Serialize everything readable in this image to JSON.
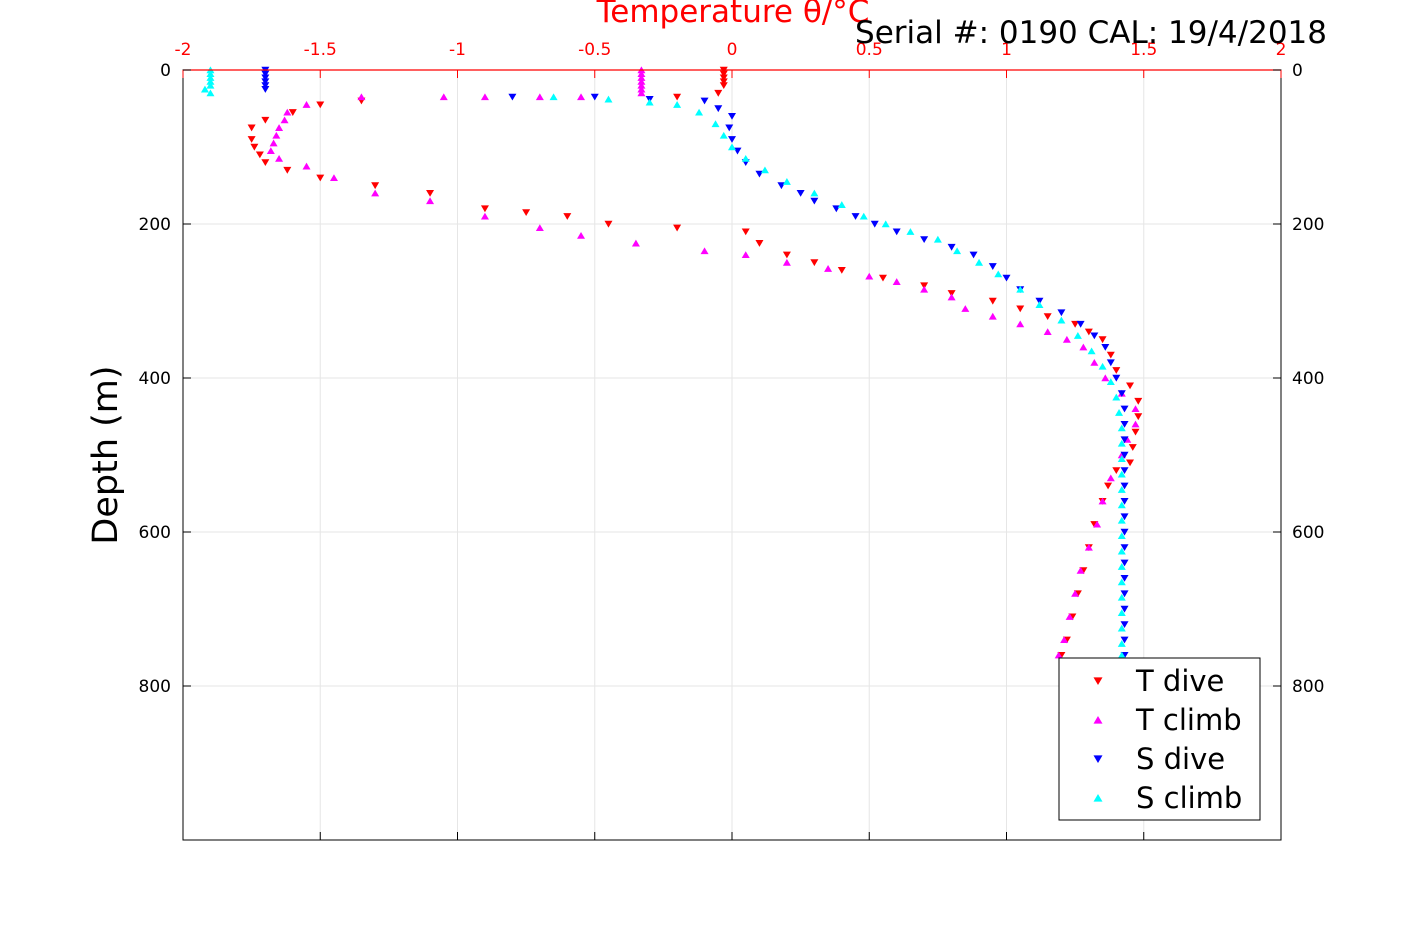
{
  "header": {
    "serial_label": "Serial #: 0190  CAL: 19/4/2018"
  },
  "colors": {
    "axis_top": "#ff0000",
    "grid": "#e6e6e6",
    "T_dive": "#ff0000",
    "T_climb": "#ff00ff",
    "S_dive": "#0000ff",
    "S_climb": "#00ffff"
  },
  "chart_data": {
    "type": "scatter",
    "title": "Temperature θ/°C",
    "xlabel": "Temperature θ/°C",
    "ylabel": "Depth (m)",
    "xlim": [
      -2,
      2
    ],
    "ylim": [
      0,
      1000
    ],
    "y_reversed": true,
    "grid": true,
    "legend_position": "bottom-right",
    "x_ticks": [
      -2,
      -1.5,
      -1,
      -0.5,
      0,
      0.5,
      1,
      1.5,
      2
    ],
    "x_tick_labels": [
      "-2",
      "-1.5",
      "-1",
      "-0.5",
      "0",
      "0.5",
      "1",
      "1.5",
      "2"
    ],
    "y_ticks": [
      0,
      200,
      400,
      600,
      800
    ],
    "y_tick_labels": [
      "0",
      "200",
      "400",
      "600",
      "800"
    ],
    "series": [
      {
        "name": "T dive",
        "marker": "triangle-down",
        "color": "#ff0000",
        "points": [
          [
            -0.03,
            0
          ],
          [
            -0.03,
            5
          ],
          [
            -0.03,
            10
          ],
          [
            -0.03,
            15
          ],
          [
            -0.03,
            20
          ],
          [
            -0.05,
            30
          ],
          [
            -0.2,
            35
          ],
          [
            -1.35,
            40
          ],
          [
            -1.5,
            45
          ],
          [
            -1.6,
            55
          ],
          [
            -1.7,
            65
          ],
          [
            -1.75,
            75
          ],
          [
            -1.75,
            90
          ],
          [
            -1.74,
            100
          ],
          [
            -1.72,
            110
          ],
          [
            -1.7,
            120
          ],
          [
            -1.62,
            130
          ],
          [
            -1.5,
            140
          ],
          [
            -1.3,
            150
          ],
          [
            -1.1,
            160
          ],
          [
            -0.9,
            180
          ],
          [
            -0.75,
            185
          ],
          [
            -0.6,
            190
          ],
          [
            -0.45,
            200
          ],
          [
            -0.2,
            205
          ],
          [
            0.05,
            210
          ],
          [
            0.1,
            225
          ],
          [
            0.2,
            240
          ],
          [
            0.3,
            250
          ],
          [
            0.4,
            260
          ],
          [
            0.55,
            270
          ],
          [
            0.7,
            280
          ],
          [
            0.8,
            290
          ],
          [
            0.95,
            300
          ],
          [
            1.05,
            310
          ],
          [
            1.15,
            320
          ],
          [
            1.25,
            330
          ],
          [
            1.3,
            340
          ],
          [
            1.35,
            350
          ],
          [
            1.38,
            370
          ],
          [
            1.4,
            390
          ],
          [
            1.45,
            410
          ],
          [
            1.48,
            430
          ],
          [
            1.48,
            450
          ],
          [
            1.47,
            470
          ],
          [
            1.46,
            490
          ],
          [
            1.45,
            510
          ],
          [
            1.4,
            520
          ],
          [
            1.37,
            540
          ],
          [
            1.35,
            560
          ],
          [
            1.32,
            590
          ],
          [
            1.3,
            620
          ],
          [
            1.28,
            650
          ],
          [
            1.26,
            680
          ],
          [
            1.24,
            710
          ],
          [
            1.22,
            740
          ],
          [
            1.2,
            760
          ]
        ]
      },
      {
        "name": "T climb",
        "marker": "triangle-up",
        "color": "#ff00ff",
        "points": [
          [
            -0.33,
            0
          ],
          [
            -0.33,
            5
          ],
          [
            -0.33,
            10
          ],
          [
            -0.33,
            15
          ],
          [
            -0.33,
            20
          ],
          [
            -0.33,
            25
          ],
          [
            -0.33,
            30
          ],
          [
            -1.35,
            35
          ],
          [
            -1.05,
            35
          ],
          [
            -0.9,
            35
          ],
          [
            -0.7,
            35
          ],
          [
            -0.55,
            35
          ],
          [
            -1.55,
            45
          ],
          [
            -1.62,
            55
          ],
          [
            -1.63,
            65
          ],
          [
            -1.65,
            75
          ],
          [
            -1.66,
            85
          ],
          [
            -1.67,
            95
          ],
          [
            -1.68,
            105
          ],
          [
            -1.65,
            115
          ],
          [
            -1.55,
            125
          ],
          [
            -1.45,
            140
          ],
          [
            -1.3,
            160
          ],
          [
            -1.1,
            170
          ],
          [
            -0.9,
            190
          ],
          [
            -0.7,
            205
          ],
          [
            -0.55,
            215
          ],
          [
            -0.35,
            225
          ],
          [
            -0.1,
            235
          ],
          [
            0.05,
            240
          ],
          [
            0.2,
            250
          ],
          [
            0.35,
            258
          ],
          [
            0.5,
            268
          ],
          [
            0.6,
            275
          ],
          [
            0.7,
            285
          ],
          [
            0.8,
            295
          ],
          [
            0.85,
            310
          ],
          [
            0.95,
            320
          ],
          [
            1.05,
            330
          ],
          [
            1.15,
            340
          ],
          [
            1.22,
            350
          ],
          [
            1.28,
            360
          ],
          [
            1.32,
            380
          ],
          [
            1.36,
            400
          ],
          [
            1.42,
            420
          ],
          [
            1.47,
            440
          ],
          [
            1.47,
            460
          ],
          [
            1.44,
            480
          ],
          [
            1.42,
            500
          ],
          [
            1.38,
            530
          ],
          [
            1.35,
            560
          ],
          [
            1.33,
            590
          ],
          [
            1.3,
            620
          ],
          [
            1.27,
            650
          ],
          [
            1.25,
            680
          ],
          [
            1.23,
            710
          ],
          [
            1.21,
            740
          ],
          [
            1.19,
            760
          ]
        ]
      },
      {
        "name": "S dive",
        "marker": "triangle-down",
        "color": "#0000ff",
        "points": [
          [
            -1.7,
            0
          ],
          [
            -1.7,
            5
          ],
          [
            -1.7,
            10
          ],
          [
            -1.7,
            15
          ],
          [
            -1.7,
            20
          ],
          [
            -1.7,
            25
          ],
          [
            -0.8,
            35
          ],
          [
            -0.5,
            35
          ],
          [
            -0.3,
            38
          ],
          [
            -0.1,
            40
          ],
          [
            -0.05,
            50
          ],
          [
            0.0,
            60
          ],
          [
            -0.01,
            75
          ],
          [
            0.0,
            90
          ],
          [
            0.02,
            105
          ],
          [
            0.05,
            120
          ],
          [
            0.1,
            135
          ],
          [
            0.18,
            150
          ],
          [
            0.25,
            160
          ],
          [
            0.3,
            170
          ],
          [
            0.38,
            180
          ],
          [
            0.45,
            190
          ],
          [
            0.52,
            200
          ],
          [
            0.6,
            210
          ],
          [
            0.7,
            220
          ],
          [
            0.8,
            230
          ],
          [
            0.88,
            240
          ],
          [
            0.95,
            255
          ],
          [
            1.0,
            270
          ],
          [
            1.05,
            285
          ],
          [
            1.12,
            300
          ],
          [
            1.2,
            315
          ],
          [
            1.27,
            330
          ],
          [
            1.32,
            345
          ],
          [
            1.36,
            360
          ],
          [
            1.38,
            380
          ],
          [
            1.4,
            400
          ],
          [
            1.42,
            420
          ],
          [
            1.43,
            440
          ],
          [
            1.43,
            460
          ],
          [
            1.43,
            480
          ],
          [
            1.43,
            500
          ],
          [
            1.43,
            520
          ],
          [
            1.43,
            540
          ],
          [
            1.43,
            560
          ],
          [
            1.43,
            580
          ],
          [
            1.43,
            600
          ],
          [
            1.43,
            620
          ],
          [
            1.43,
            640
          ],
          [
            1.43,
            660
          ],
          [
            1.43,
            680
          ],
          [
            1.43,
            700
          ],
          [
            1.43,
            720
          ],
          [
            1.43,
            740
          ],
          [
            1.43,
            760
          ]
        ]
      },
      {
        "name": "S climb",
        "marker": "triangle-up",
        "color": "#00ffff",
        "points": [
          [
            -1.9,
            0
          ],
          [
            -1.9,
            5
          ],
          [
            -1.9,
            10
          ],
          [
            -1.9,
            15
          ],
          [
            -1.9,
            20
          ],
          [
            -1.92,
            25
          ],
          [
            -1.9,
            30
          ],
          [
            -0.65,
            35
          ],
          [
            -0.45,
            38
          ],
          [
            -0.3,
            42
          ],
          [
            -0.2,
            45
          ],
          [
            -0.12,
            55
          ],
          [
            -0.06,
            70
          ],
          [
            -0.03,
            85
          ],
          [
            0.0,
            100
          ],
          [
            0.05,
            115
          ],
          [
            0.12,
            130
          ],
          [
            0.2,
            145
          ],
          [
            0.3,
            160
          ],
          [
            0.4,
            175
          ],
          [
            0.48,
            190
          ],
          [
            0.56,
            200
          ],
          [
            0.65,
            210
          ],
          [
            0.75,
            220
          ],
          [
            0.82,
            235
          ],
          [
            0.9,
            250
          ],
          [
            0.97,
            265
          ],
          [
            1.05,
            285
          ],
          [
            1.12,
            305
          ],
          [
            1.2,
            325
          ],
          [
            1.26,
            345
          ],
          [
            1.31,
            365
          ],
          [
            1.35,
            385
          ],
          [
            1.38,
            405
          ],
          [
            1.4,
            425
          ],
          [
            1.41,
            445
          ],
          [
            1.42,
            465
          ],
          [
            1.42,
            485
          ],
          [
            1.42,
            505
          ],
          [
            1.42,
            525
          ],
          [
            1.42,
            545
          ],
          [
            1.42,
            565
          ],
          [
            1.42,
            585
          ],
          [
            1.42,
            605
          ],
          [
            1.42,
            625
          ],
          [
            1.42,
            645
          ],
          [
            1.42,
            665
          ],
          [
            1.42,
            685
          ],
          [
            1.42,
            705
          ],
          [
            1.42,
            725
          ],
          [
            1.42,
            745
          ],
          [
            1.42,
            760
          ]
        ]
      }
    ]
  }
}
